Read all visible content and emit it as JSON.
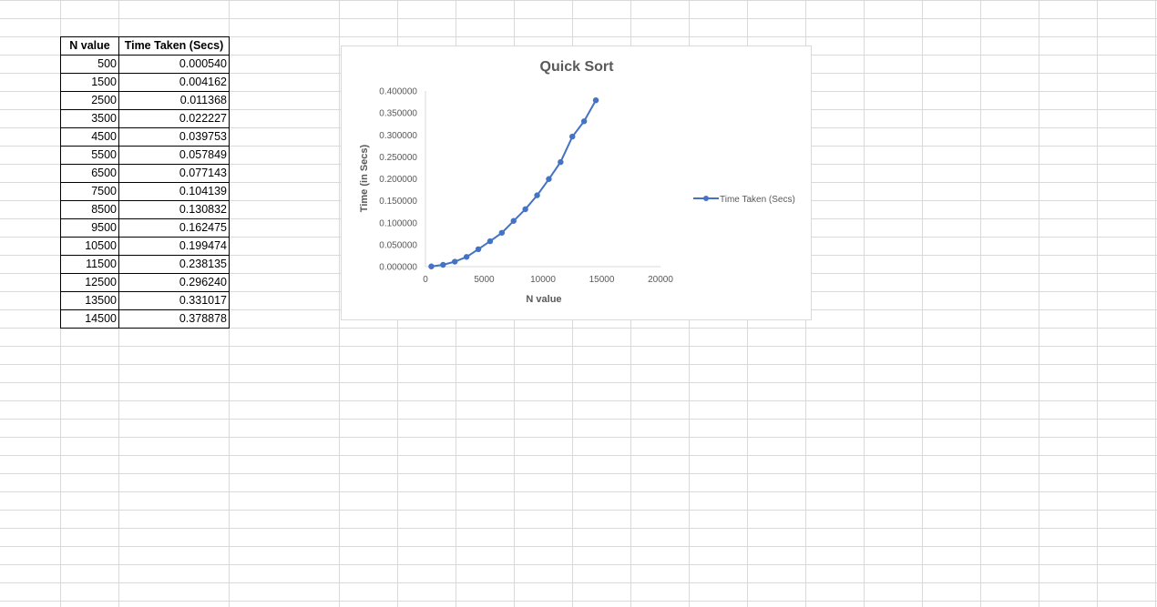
{
  "sheet": {
    "headers": {
      "n": "N value",
      "time": "Time Taken (Secs)"
    },
    "rows": [
      {
        "n": "500",
        "time": "0.000540"
      },
      {
        "n": "1500",
        "time": "0.004162"
      },
      {
        "n": "2500",
        "time": "0.011368"
      },
      {
        "n": "3500",
        "time": "0.022227"
      },
      {
        "n": "4500",
        "time": "0.039753"
      },
      {
        "n": "5500",
        "time": "0.057849"
      },
      {
        "n": "6500",
        "time": "0.077143"
      },
      {
        "n": "7500",
        "time": "0.104139"
      },
      {
        "n": "8500",
        "time": "0.130832"
      },
      {
        "n": "9500",
        "time": "0.162475"
      },
      {
        "n": "10500",
        "time": "0.199474"
      },
      {
        "n": "11500",
        "time": "0.238135"
      },
      {
        "n": "12500",
        "time": "0.296240"
      },
      {
        "n": "13500",
        "time": "0.331017"
      },
      {
        "n": "14500",
        "time": "0.378878"
      }
    ]
  },
  "chart_data": {
    "type": "scatter",
    "title": "Quick Sort",
    "xlabel": "N value",
    "ylabel": "Time (in Secs)",
    "xlim": [
      0,
      20000
    ],
    "ylim": [
      0,
      0.4
    ],
    "xticks": [
      "0",
      "5000",
      "10000",
      "15000",
      "20000"
    ],
    "yticks": [
      "0.000000",
      "0.050000",
      "0.100000",
      "0.150000",
      "0.200000",
      "0.250000",
      "0.300000",
      "0.350000",
      "0.400000"
    ],
    "legend": "right",
    "series": [
      {
        "name": "Time Taken (Secs)",
        "color": "#4472c4",
        "x": [
          500,
          1500,
          2500,
          3500,
          4500,
          5500,
          6500,
          7500,
          8500,
          9500,
          10500,
          11500,
          12500,
          13500,
          14500
        ],
        "y": [
          0.00054,
          0.004162,
          0.011368,
          0.022227,
          0.039753,
          0.057849,
          0.077143,
          0.104139,
          0.130832,
          0.162475,
          0.199474,
          0.238135,
          0.29624,
          0.331017,
          0.378878
        ]
      }
    ]
  },
  "colors": {
    "grid": "#d9d9d9",
    "series": "#4472c4",
    "text": "#595959"
  }
}
